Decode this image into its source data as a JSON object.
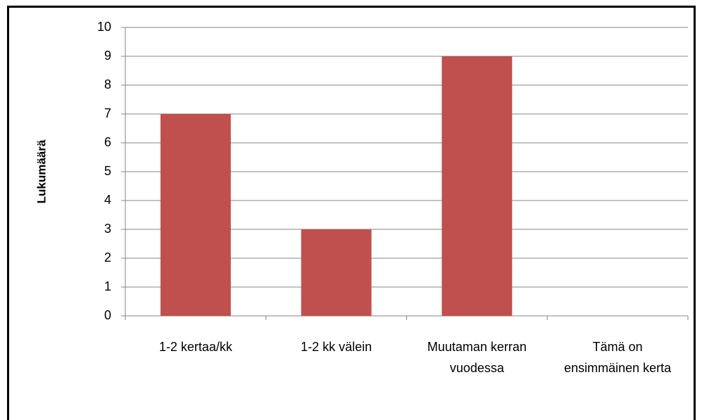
{
  "chart_data": {
    "type": "bar",
    "y_label": "Lukumäärä",
    "categories": [
      "1-2 kertaa/kk",
      "1-2 kk välein",
      "Muutaman kerran vuodessa",
      "Tämä on ensimmäinen kerta"
    ],
    "values": [
      7,
      3,
      9,
      0
    ],
    "color": "#c0504d",
    "ylim": [
      0,
      10
    ],
    "yticks": [
      0,
      1,
      2,
      3,
      4,
      5,
      6,
      7,
      8,
      9,
      10
    ],
    "grid": true
  }
}
